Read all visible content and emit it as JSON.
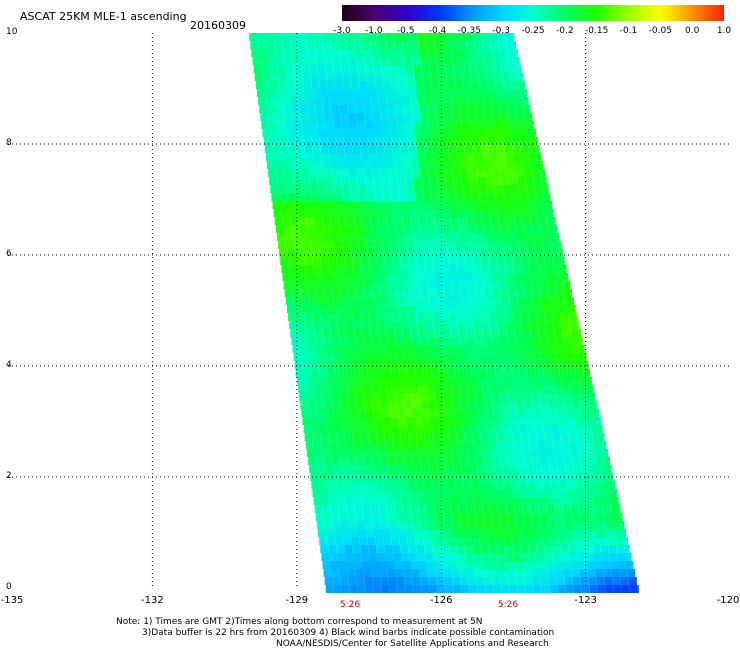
{
  "header": {
    "title": "ASCAT 25KM MLE-1 ascending",
    "date": "20160309"
  },
  "colorbar": {
    "labels": [
      "-3.0",
      "-1.0",
      "-0.5",
      "-0.4",
      "-0.35",
      "-0.3",
      "-0.25",
      "-0.2",
      "-0.15",
      "-0.1",
      "-0.05",
      "0.0",
      "1.0"
    ],
    "colors": [
      "#1a0010",
      "#4b006e",
      "#2d00c8",
      "#0032ff",
      "#0090ff",
      "#00d8ff",
      "#00ffd0",
      "#00ff60",
      "#20ff00",
      "#a0ff00",
      "#ffff00",
      "#ff9000",
      "#ff2000"
    ]
  },
  "axes": {
    "x_ticks": [
      "-135",
      "-132",
      "-129",
      "-126",
      "-123",
      "-120"
    ],
    "y_ticks": [
      "0",
      "2",
      "4",
      "6",
      "8",
      "10"
    ],
    "xlim": [
      -135,
      -120
    ],
    "ylim": [
      0,
      10
    ]
  },
  "times": [
    "5:26",
    "5:26"
  ],
  "notes": {
    "line1": "Note: 1) Times are GMT 2)Times along bottom correspond to measurement at 5N",
    "line2": "3)Data buffer is 22 hrs from 20160309 4) Black wind barbs indicate possible contamination",
    "line3": "NOAA/NESDIS/Center for Satellite Applications and Research"
  },
  "swath": {
    "lon_range_at_top": [
      -130.0,
      -124.5
    ],
    "lon_range_at_bottom": [
      -128.4,
      -121.9
    ],
    "value_range": [
      -0.35,
      -0.1
    ],
    "dominant_value": -0.2
  }
}
